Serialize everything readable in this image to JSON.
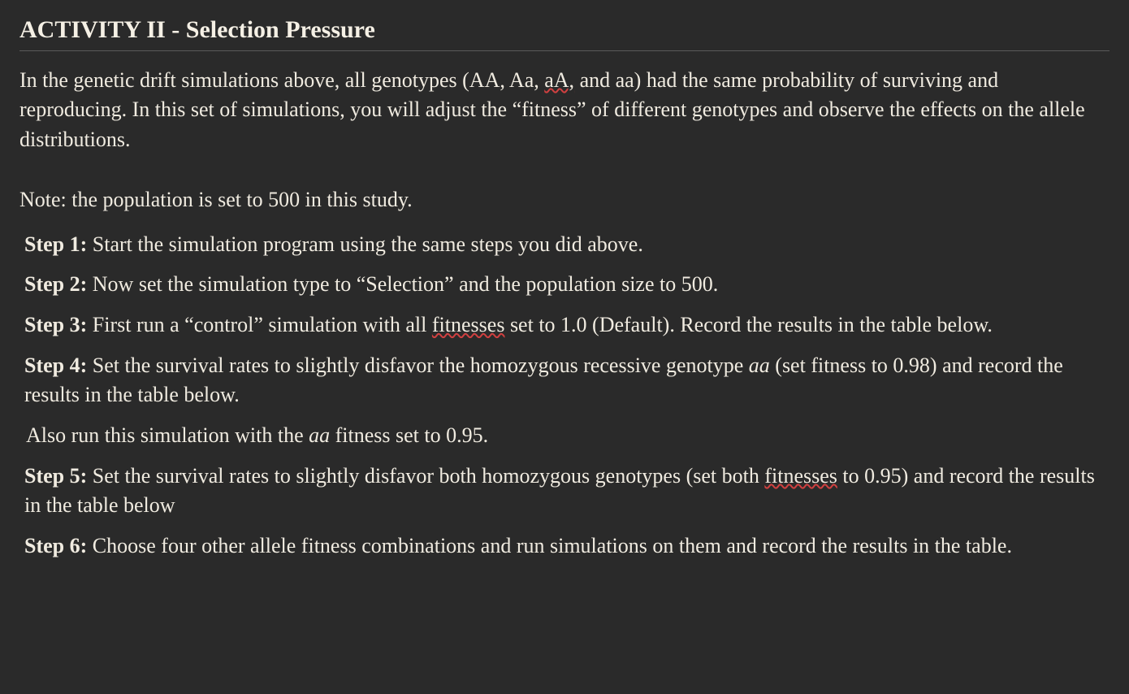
{
  "title": "ACTIVITY II - Selection Pressure",
  "intro": {
    "p1a": "In the genetic drift simulations above, all genotypes (AA, Aa, ",
    "p1b_wavy": "aA,",
    "p1c": " and aa) had the same probability of surviving and reproducing. In this set of simulations, you will adjust the “fitness” of different genotypes and observe the effects on the allele distributions."
  },
  "note": "Note: the population is set to 500 in this study.",
  "steps": {
    "s1": {
      "label": "Step 1:",
      "text": " Start the simulation program using the same steps you did above."
    },
    "s2": {
      "label": "Step 2:",
      "text": " Now set the simulation type to “Selection” and the population size to 500."
    },
    "s3": {
      "label": "Step 3:",
      "a": " First run a “control” simulation with all ",
      "wavy": "fitnesses",
      "b": " set to 1.0 (Default). Record the results in the table below."
    },
    "s4": {
      "label": "Step 4:",
      "a": " Set the survival rates to slightly disfavor the homozygous recessive genotype ",
      "ital": "aa",
      "b": " (set fitness to 0.98) and record the results in the table below."
    },
    "also": {
      "a": "Also run this simulation with the ",
      "ital": "aa",
      "b": " fitness set to 0.95."
    },
    "s5": {
      "label": "Step 5:",
      "a": " Set the survival rates to slightly disfavor both homozygous genotypes (set both ",
      "wavy": "fitnesses",
      "b": " to 0.95) and record the results in the table below"
    },
    "s6": {
      "label": "Step 6:",
      "text": " Choose four other allele fitness combinations and run simulations on them and record the results in the table."
    }
  },
  "colors": {
    "background": "#2a2a2a",
    "text": "#f0ebe0",
    "wavy_underline": "#d04040",
    "rule": "#5a5a5a"
  },
  "typography": {
    "title_fontsize": 30,
    "body_fontsize": 26,
    "font_family": "Georgia, Times New Roman, serif"
  }
}
